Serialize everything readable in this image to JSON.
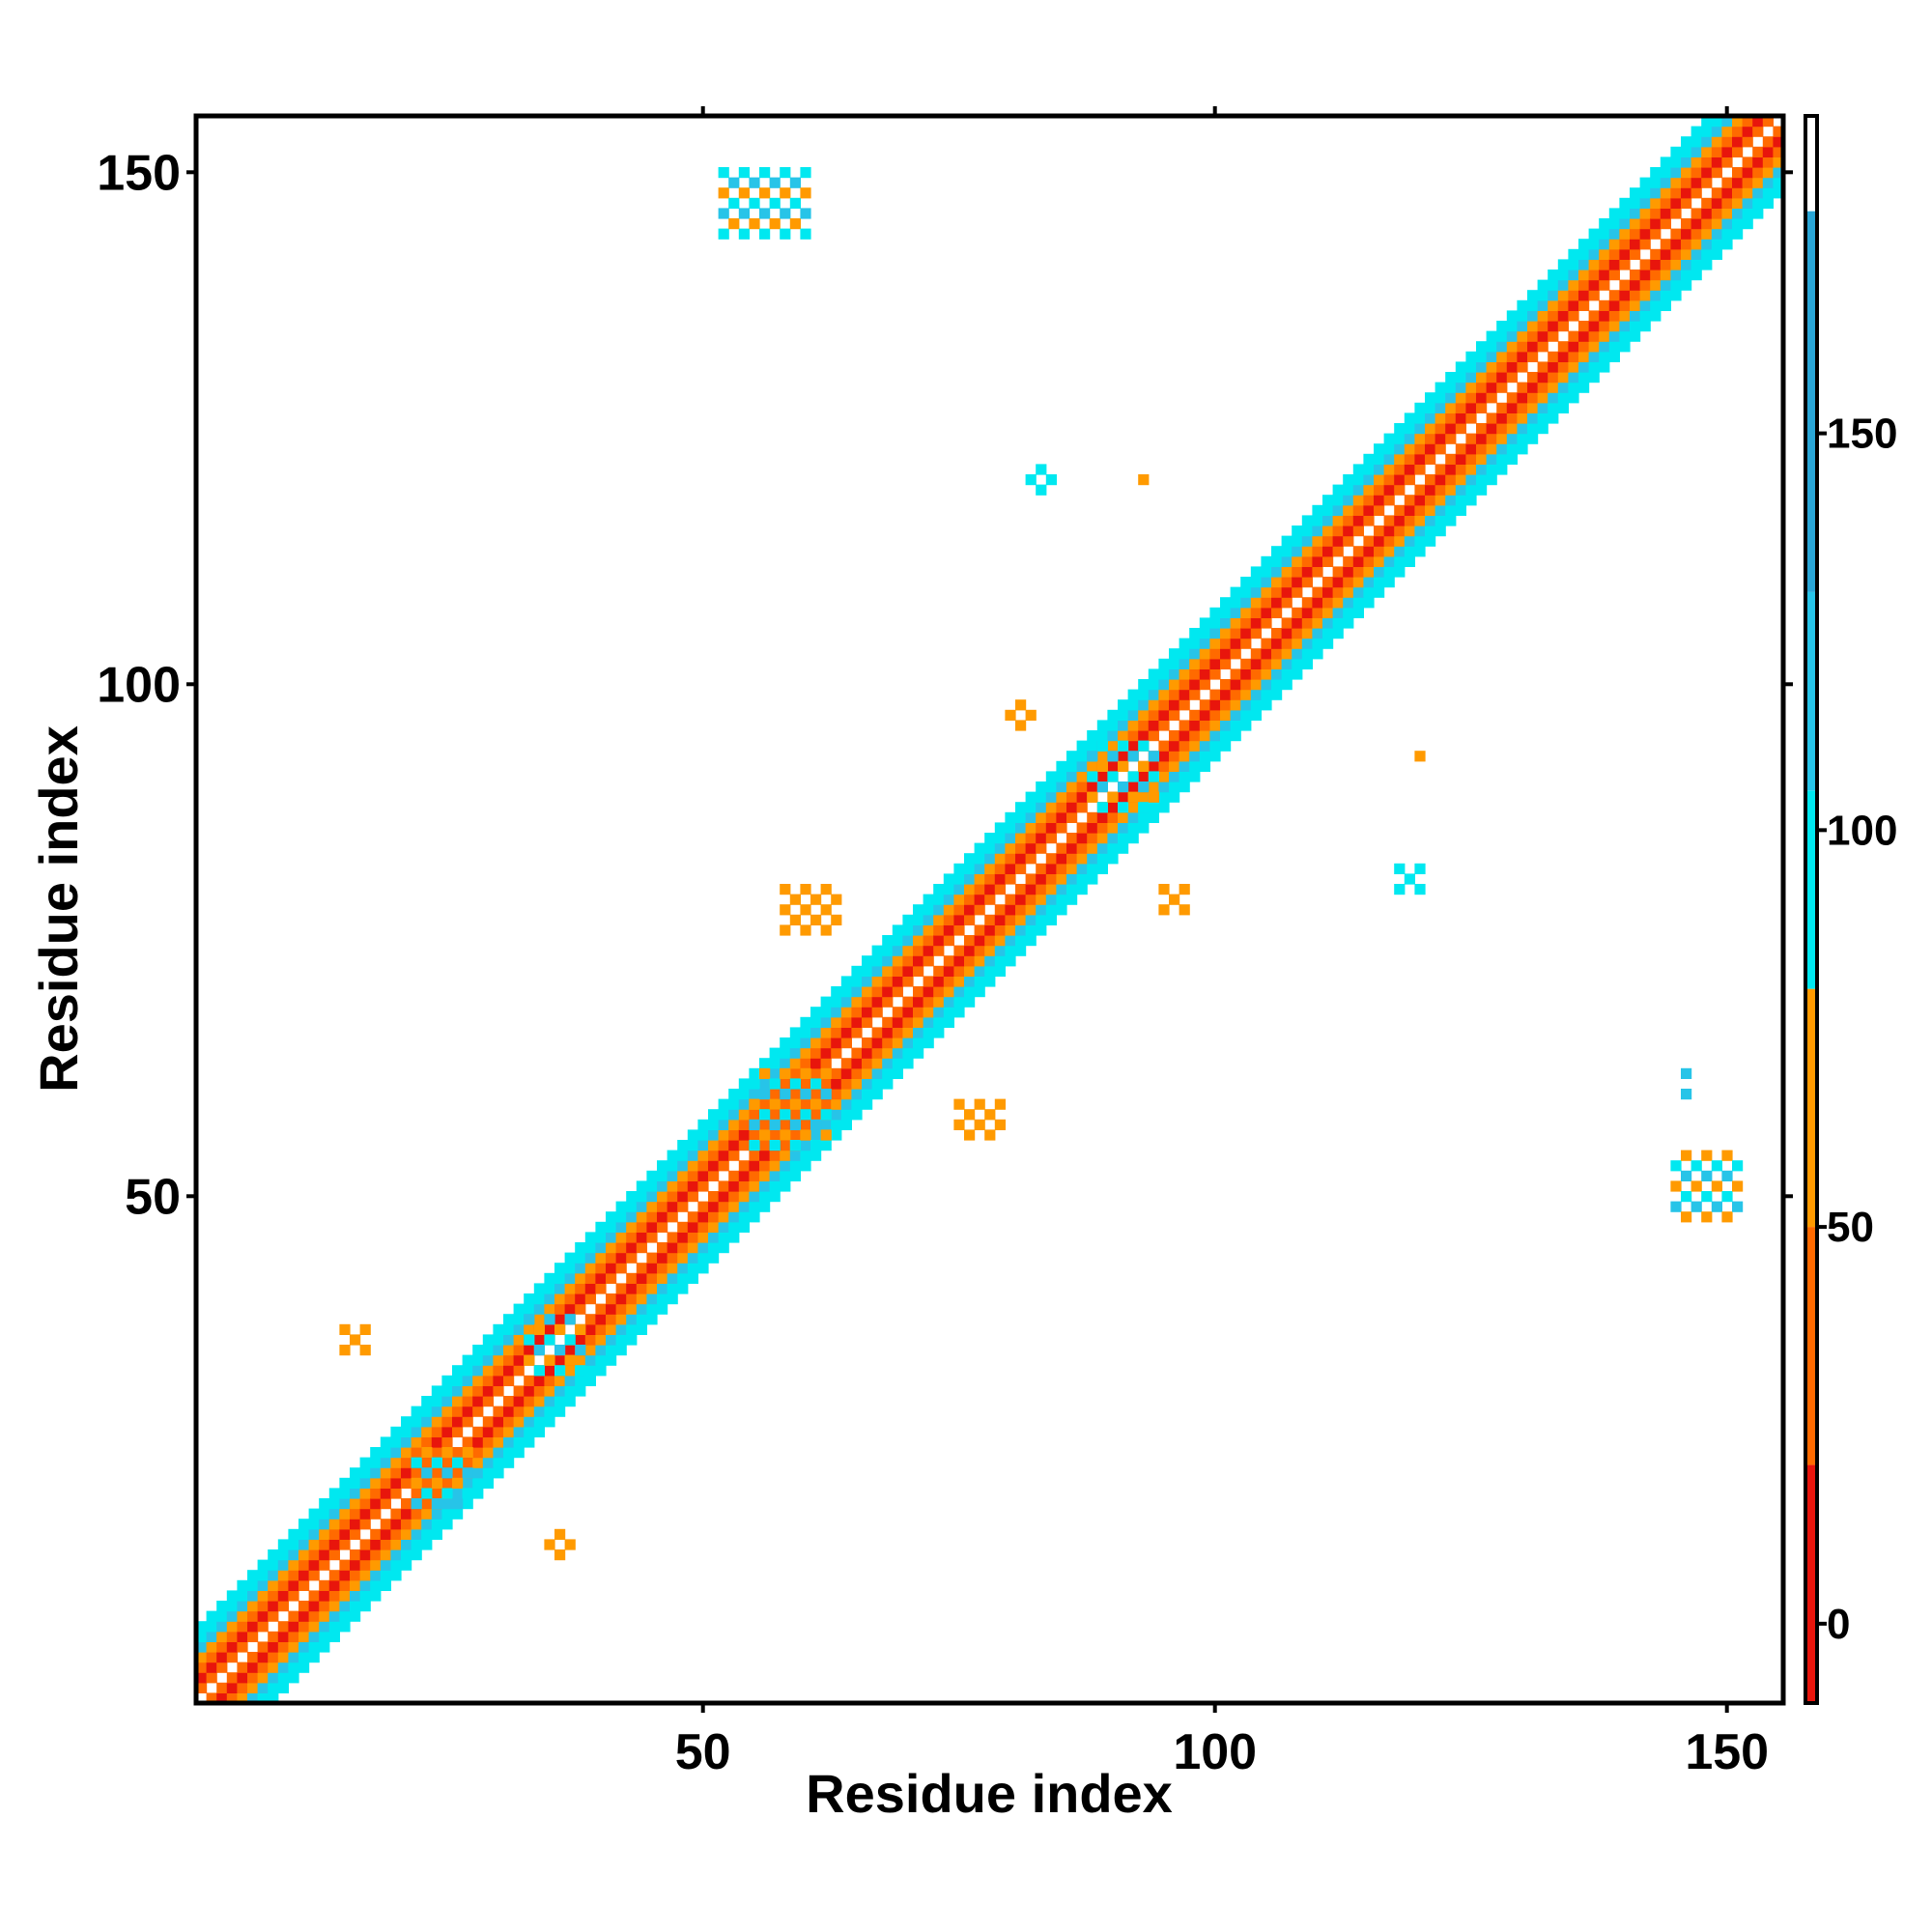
{
  "chart_data": {
    "type": "heatmap",
    "xlabel": "Residue index",
    "ylabel": "Residue index",
    "xlim": [
      1,
      155
    ],
    "ylim": [
      1,
      155
    ],
    "x_ticks": [
      50,
      100,
      150
    ],
    "y_ticks": [
      50,
      100,
      150
    ],
    "x_tick_labels": [
      "50",
      "100",
      "150"
    ],
    "y_tick_labels": [
      "50",
      "100",
      "150"
    ],
    "grid": false,
    "legend": "colorbar-right",
    "colorbar": {
      "range": [
        -10,
        190
      ],
      "ticks": [
        0,
        50,
        100,
        150
      ],
      "tick_labels": [
        "0",
        "50",
        "100",
        "150"
      ],
      "bins": [
        {
          "from": -10,
          "to": 20,
          "color": "#e8150c"
        },
        {
          "from": 20,
          "to": 50,
          "color": "#ff6a00"
        },
        {
          "from": 50,
          "to": 80,
          "color": "#ff9a00"
        },
        {
          "from": 80,
          "to": 105,
          "color": "#00e8f0"
        },
        {
          "from": 105,
          "to": 130,
          "color": "#27c4e8"
        },
        {
          "from": 130,
          "to": 178,
          "color": "#2aa6d6"
        },
        {
          "from": 178,
          "to": 190,
          "color": "#ffffff"
        }
      ]
    },
    "diagonal_bands": [
      {
        "from": 1,
        "to": 155,
        "offsets": [
          {
            "offset": 1,
            "color": "#ff6a00"
          },
          {
            "offset": 2,
            "color": "#e8150c"
          },
          {
            "offset": 3,
            "color": "#ff6a00"
          },
          {
            "offset": 4,
            "color": "#ff9a00"
          },
          {
            "offset": 5,
            "color": "#27c4e8"
          },
          {
            "offset": 6,
            "color": "#00e8f0"
          },
          {
            "offset": 7,
            "color": "#00e8f0"
          }
        ]
      }
    ],
    "off_diagonal_clusters": [
      {
        "x": 22,
        "y": 20,
        "w": 6,
        "h": 6,
        "colors": [
          "#27c4e8",
          "#00e8f0",
          "#ff9a00"
        ]
      },
      {
        "x": 33,
        "y": 33,
        "w": 6,
        "h": 6,
        "colors": [
          "#27c4e8",
          "#00e8f0",
          "#ff9a00"
        ]
      },
      {
        "x": 15,
        "y": 35,
        "w": 3,
        "h": 3,
        "colors": [
          "#ff9a00",
          "#e8150c"
        ]
      },
      {
        "x": 35,
        "y": 15,
        "w": 3,
        "h": 3,
        "colors": [
          "#ff9a00",
          "#e8150c"
        ]
      },
      {
        "x": 55,
        "y": 55,
        "w": 8,
        "h": 8,
        "colors": [
          "#27c4e8",
          "#00e8f0",
          "#ff9a00"
        ]
      },
      {
        "x": 75,
        "y": 56,
        "w": 5,
        "h": 4,
        "colors": [
          "#ff9a00",
          "#00e8f0"
        ]
      },
      {
        "x": 58,
        "y": 76,
        "w": 6,
        "h": 5,
        "colors": [
          "#ff9a00",
          "#00e8f0"
        ]
      },
      {
        "x": 88,
        "y": 88,
        "w": 7,
        "h": 7,
        "colors": [
          "#27c4e8",
          "#00e8f0",
          "#ff9a00"
        ]
      },
      {
        "x": 95,
        "y": 78,
        "w": 3,
        "h": 3,
        "colors": [
          "#ff9a00",
          "#00e8f0"
        ]
      },
      {
        "x": 80,
        "y": 96,
        "w": 3,
        "h": 3,
        "colors": [
          "#ff9a00",
          "#00e8f0"
        ]
      },
      {
        "x": 52,
        "y": 144,
        "w": 9,
        "h": 7,
        "colors": [
          "#27c4e8",
          "#00e8f0",
          "#ff9a00"
        ]
      },
      {
        "x": 145,
        "y": 48,
        "w": 7,
        "h": 7,
        "colors": [
          "#27c4e8",
          "#00e8f0",
          "#ff9a00"
        ]
      },
      {
        "x": 146,
        "y": 60,
        "w": 1,
        "h": 3,
        "colors": [
          "#27c4e8"
        ]
      },
      {
        "x": 82,
        "y": 119,
        "w": 3,
        "h": 3,
        "colors": [
          "#00e8f0"
        ]
      },
      {
        "x": 93,
        "y": 120,
        "w": 1,
        "h": 1,
        "colors": [
          "#ff9a00"
        ]
      },
      {
        "x": 120,
        "y": 93,
        "w": 1,
        "h": 1,
        "colors": [
          "#ff9a00"
        ]
      },
      {
        "x": 118,
        "y": 80,
        "w": 3,
        "h": 3,
        "colors": [
          "#00e8f0"
        ]
      }
    ]
  }
}
